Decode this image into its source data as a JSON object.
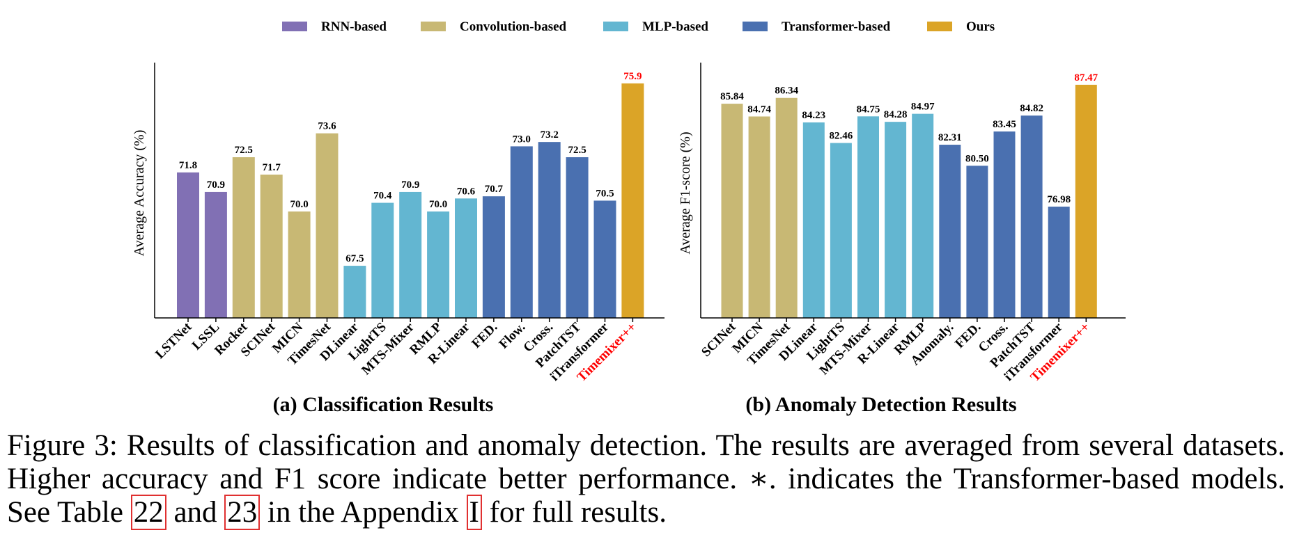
{
  "legend": [
    {
      "label": "RNN-based",
      "color": "#8170b4"
    },
    {
      "label": "Convolution-based",
      "color": "#c8b874"
    },
    {
      "label": "MLP-based",
      "color": "#63b6d1"
    },
    {
      "label": "Transformer-based",
      "color": "#4a70b0"
    },
    {
      "label": "Ours",
      "color": "#dba427"
    }
  ],
  "highlight_color": "#ff0000",
  "chart_data": [
    {
      "type": "bar",
      "ylabel": "Average Accuracy (%)",
      "ylim": [
        65.1,
        76.6
      ],
      "categories": [
        "LSTNet",
        "LSSL",
        "Rocket",
        "SCINet",
        "MICN",
        "TimesNet",
        "DLinear",
        "LightTS",
        "MTS-Mixer",
        "RMLP",
        "R-Linear",
        "FED.",
        "Flow.",
        "Cross.",
        "PatchTST",
        "iTransformer",
        "Timemixer++"
      ],
      "values": [
        71.8,
        70.9,
        72.5,
        71.7,
        70.0,
        73.6,
        67.5,
        70.4,
        70.9,
        70.0,
        70.6,
        70.7,
        73.0,
        73.2,
        72.5,
        70.5,
        75.9
      ],
      "labels": [
        "71.8",
        "70.9",
        "72.5",
        "71.7",
        "70.0",
        "73.6",
        "67.5",
        "70.4",
        "70.9",
        "70.0",
        "70.6",
        "70.7",
        "73.0",
        "73.2",
        "72.5",
        "70.5",
        "75.9"
      ],
      "groups": [
        0,
        0,
        1,
        1,
        1,
        1,
        2,
        2,
        2,
        2,
        2,
        3,
        3,
        3,
        3,
        3,
        4
      ],
      "highlight": "Timemixer++"
    },
    {
      "type": "bar",
      "ylabel": "Average F1-score (%)",
      "ylim": [
        67.4,
        88.9
      ],
      "categories": [
        "SCINet",
        "MICN",
        "TimesNet",
        "DLinear",
        "LightTS",
        "MTS-Mixer",
        "R-Linear",
        "RMLP",
        "Anomaly.",
        "FED.",
        "Cross.",
        "PatchTST",
        "iTransformer",
        "Timemixer++"
      ],
      "values": [
        85.84,
        84.74,
        86.34,
        84.23,
        82.46,
        84.75,
        84.28,
        84.97,
        82.31,
        80.5,
        83.45,
        84.82,
        76.98,
        87.47
      ],
      "labels": [
        "85.84",
        "84.74",
        "86.34",
        "84.23",
        "82.46",
        "84.75",
        "84.28",
        "84.97",
        "82.31",
        "80.50",
        "83.45",
        "84.82",
        "76.98",
        "87.47"
      ],
      "groups": [
        1,
        1,
        1,
        2,
        2,
        2,
        2,
        2,
        3,
        3,
        3,
        3,
        3,
        4
      ],
      "highlight": "Timemixer++"
    }
  ],
  "subcaptions": {
    "a": "(a) Classification Results",
    "b": "(b) Anomaly Detection Results"
  },
  "caption": {
    "part1": "Figure 3: Results of classification and anomaly detection. The results are averaged from several datasets. Higher accuracy and F1 score indicate better performance. ∗. indicates the Transformer-based models. See Table ",
    "ref1": "22",
    "part2": " and ",
    "ref2": "23",
    "part3": " in the Appendix ",
    "ref3": "I",
    "part4": " for full results."
  }
}
